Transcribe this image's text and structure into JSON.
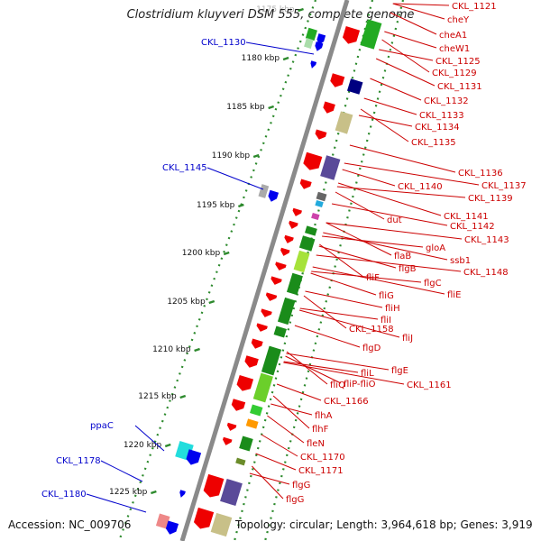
{
  "title": "Clostridium kluyveri DSM 555, complete genome",
  "footer": {
    "accession": "Accession: NC_009706",
    "topology": "Topology: circular; Length: 3,964,618 bp; Genes: 3,919"
  },
  "colors": {
    "backbone": "#8a8a8a",
    "ticks": "#2d8a2d",
    "label_right": "#cc0000",
    "label_left": "#0000cc",
    "gene_default": "#ee0000"
  },
  "ruler": {
    "labels": [
      "1175 kbp",
      "1180 kbp",
      "1185 kbp",
      "1190 kbp",
      "1195 kbp",
      "1200 kbp",
      "1205 kbp",
      "1210 kbp",
      "1215 kbp",
      "1220 kbp",
      "1225 kbp"
    ]
  },
  "left_labels": [
    "CKL_1130",
    "CKL_1145",
    "ppaC",
    "CKL_1178",
    "CKL_1180"
  ],
  "right_labels": [
    "CKL_1121",
    "cheY",
    "cheA1",
    "cheW1",
    "CKL_1125",
    "CKL_1129",
    "CKL_1131",
    "CKL_1132",
    "CKL_1133",
    "CKL_1134",
    "CKL_1135",
    "CKL_1136",
    "CKL_1137",
    "CKL_1140",
    "CKL_1139",
    "CKL_1141",
    "dut",
    "CKL_1142",
    "CKL_1143",
    "gloA",
    "flaB",
    "ssb1",
    "flgB",
    "CKL_1148",
    "flgC",
    "fliF",
    "fliE",
    "fliG",
    "fliH",
    "fliI",
    "CKL_1158",
    "fliJ",
    "flgD",
    "flgE",
    "fliL",
    "fliQ",
    "fliP-fliO",
    "CKL_1161",
    "CKL_1166",
    "flhA",
    "flhF",
    "fleN",
    "CKL_1170",
    "CKL_1171",
    "flgG",
    "flgG"
  ]
}
